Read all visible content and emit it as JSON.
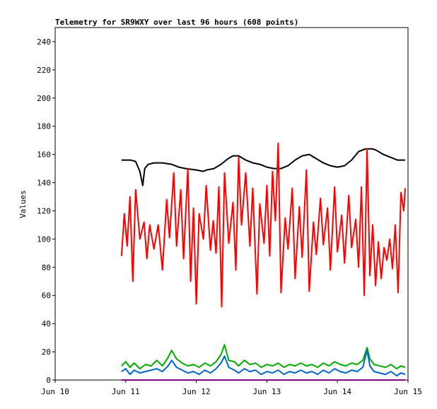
{
  "chart_data": {
    "type": "line",
    "title": "Telemetry for SR9WXY over last 96 hours (608 points)",
    "xlabel": "",
    "ylabel": "Values",
    "xlim": [
      0,
      5
    ],
    "ylim": [
      0,
      250
    ],
    "grid": false,
    "legend": "none",
    "xticks": [
      {
        "value": 0,
        "label": "Jun 10"
      },
      {
        "value": 1,
        "label": "Jun 11"
      },
      {
        "value": 2,
        "label": "Jun 12"
      },
      {
        "value": 3,
        "label": "Jun 13"
      },
      {
        "value": 4,
        "label": "Jun 14"
      },
      {
        "value": 5,
        "label": "Jun 15"
      }
    ],
    "yticks": [
      0,
      20,
      40,
      60,
      80,
      100,
      120,
      140,
      160,
      180,
      200,
      220,
      240
    ],
    "series": [
      {
        "color": "#000000",
        "x": [
          0.94,
          1.07,
          1.14,
          1.2,
          1.24,
          1.27,
          1.32,
          1.4,
          1.52,
          1.65,
          1.75,
          1.85,
          2.0,
          2.1,
          2.15,
          2.25,
          2.35,
          2.45,
          2.52,
          2.6,
          2.7,
          2.8,
          2.9,
          3.0,
          3.1,
          3.2,
          3.3,
          3.4,
          3.5,
          3.6,
          3.7,
          3.8,
          3.9,
          4.0,
          4.1,
          4.2,
          4.3,
          4.4,
          4.5,
          4.55,
          4.65,
          4.75,
          4.85,
          4.92,
          4.96
        ],
        "values": [
          156,
          156,
          155,
          148,
          138,
          150,
          153,
          154,
          154,
          153,
          151,
          150,
          149,
          148,
          149,
          150,
          153,
          157,
          159,
          159,
          156,
          154,
          153,
          151,
          150,
          150,
          152,
          156,
          159,
          160,
          157,
          154,
          152,
          151,
          152,
          156,
          162,
          164,
          164,
          163,
          160,
          158,
          156,
          156,
          156
        ]
      },
      {
        "color": "#ff0000",
        "x": [
          0.94,
          0.98,
          1.02,
          1.06,
          1.1,
          1.14,
          1.2,
          1.26,
          1.3,
          1.34,
          1.4,
          1.46,
          1.52,
          1.58,
          1.62,
          1.68,
          1.72,
          1.78,
          1.82,
          1.88,
          1.92,
          1.96,
          2.0,
          2.04,
          2.1,
          2.14,
          2.2,
          2.24,
          2.28,
          2.32,
          2.36,
          2.4,
          2.46,
          2.52,
          2.56,
          2.6,
          2.64,
          2.7,
          2.76,
          2.8,
          2.86,
          2.9,
          2.96,
          3.0,
          3.04,
          3.08,
          3.12,
          3.16,
          3.2,
          3.26,
          3.3,
          3.36,
          3.4,
          3.46,
          3.5,
          3.56,
          3.6,
          3.66,
          3.7,
          3.76,
          3.8,
          3.86,
          3.9,
          3.96,
          4.0,
          4.06,
          4.1,
          4.16,
          4.2,
          4.26,
          4.3,
          4.34,
          4.38,
          4.42,
          4.46,
          4.5,
          4.54,
          4.58,
          4.62,
          4.66,
          4.7,
          4.74,
          4.78,
          4.82,
          4.86,
          4.9,
          4.94,
          4.96
        ],
        "values": [
          88,
          118,
          95,
          130,
          70,
          135,
          100,
          112,
          86,
          110,
          93,
          110,
          78,
          128,
          101,
          147,
          95,
          135,
          86,
          150,
          70,
          122,
          54,
          118,
          100,
          138,
          92,
          113,
          90,
          137,
          52,
          147,
          97,
          126,
          78,
          158,
          110,
          147,
          95,
          136,
          61,
          125,
          97,
          138,
          88,
          148,
          113,
          168,
          62,
          115,
          93,
          136,
          72,
          123,
          87,
          149,
          63,
          112,
          89,
          129,
          96,
          122,
          78,
          137,
          91,
          117,
          83,
          131,
          94,
          114,
          80,
          137,
          60,
          164,
          74,
          110,
          67,
          98,
          72,
          94,
          85,
          100,
          79,
          110,
          62,
          133,
          120,
          136
        ]
      },
      {
        "color": "#00aa00",
        "x": [
          0.94,
          1.0,
          1.06,
          1.12,
          1.2,
          1.28,
          1.36,
          1.44,
          1.52,
          1.6,
          1.65,
          1.72,
          1.8,
          1.88,
          1.96,
          2.04,
          2.12,
          2.2,
          2.28,
          2.35,
          2.4,
          2.46,
          2.54,
          2.6,
          2.68,
          2.76,
          2.84,
          2.92,
          3.0,
          3.08,
          3.16,
          3.24,
          3.32,
          3.4,
          3.48,
          3.56,
          3.64,
          3.72,
          3.8,
          3.88,
          3.96,
          4.04,
          4.12,
          4.2,
          4.28,
          4.36,
          4.42,
          4.46,
          4.52,
          4.6,
          4.68,
          4.76,
          4.84,
          4.9,
          4.96
        ],
        "values": [
          10,
          13,
          9,
          12,
          8,
          11,
          10,
          14,
          10,
          16,
          21,
          15,
          12,
          10,
          11,
          9,
          12,
          10,
          13,
          18,
          25,
          14,
          13,
          10,
          14,
          11,
          12,
          9,
          11,
          10,
          12,
          9,
          11,
          10,
          12,
          10,
          11,
          9,
          12,
          10,
          13,
          11,
          10,
          12,
          11,
          14,
          23,
          15,
          11,
          10,
          9,
          11,
          8,
          10,
          9
        ]
      },
      {
        "color": "#0066cc",
        "x": [
          0.94,
          1.0,
          1.06,
          1.12,
          1.2,
          1.28,
          1.36,
          1.44,
          1.52,
          1.6,
          1.65,
          1.72,
          1.8,
          1.88,
          1.96,
          2.04,
          2.12,
          2.2,
          2.28,
          2.35,
          2.4,
          2.46,
          2.54,
          2.6,
          2.68,
          2.76,
          2.84,
          2.92,
          3.0,
          3.08,
          3.16,
          3.24,
          3.32,
          3.4,
          3.48,
          3.56,
          3.64,
          3.72,
          3.8,
          3.88,
          3.96,
          4.04,
          4.12,
          4.2,
          4.28,
          4.36,
          4.42,
          4.46,
          4.52,
          4.6,
          4.68,
          4.76,
          4.84,
          4.9,
          4.96
        ],
        "values": [
          6,
          8,
          4,
          7,
          5,
          6,
          7,
          8,
          6,
          10,
          14,
          9,
          7,
          5,
          6,
          4,
          7,
          5,
          8,
          12,
          17,
          9,
          7,
          5,
          8,
          6,
          7,
          4,
          6,
          5,
          7,
          4,
          6,
          5,
          7,
          5,
          6,
          4,
          7,
          5,
          8,
          6,
          5,
          7,
          6,
          9,
          21,
          10,
          6,
          5,
          4,
          6,
          3,
          5,
          4
        ]
      },
      {
        "color": "#800080",
        "x": [
          0.94,
          4.96
        ],
        "values": [
          0,
          0
        ]
      }
    ]
  }
}
